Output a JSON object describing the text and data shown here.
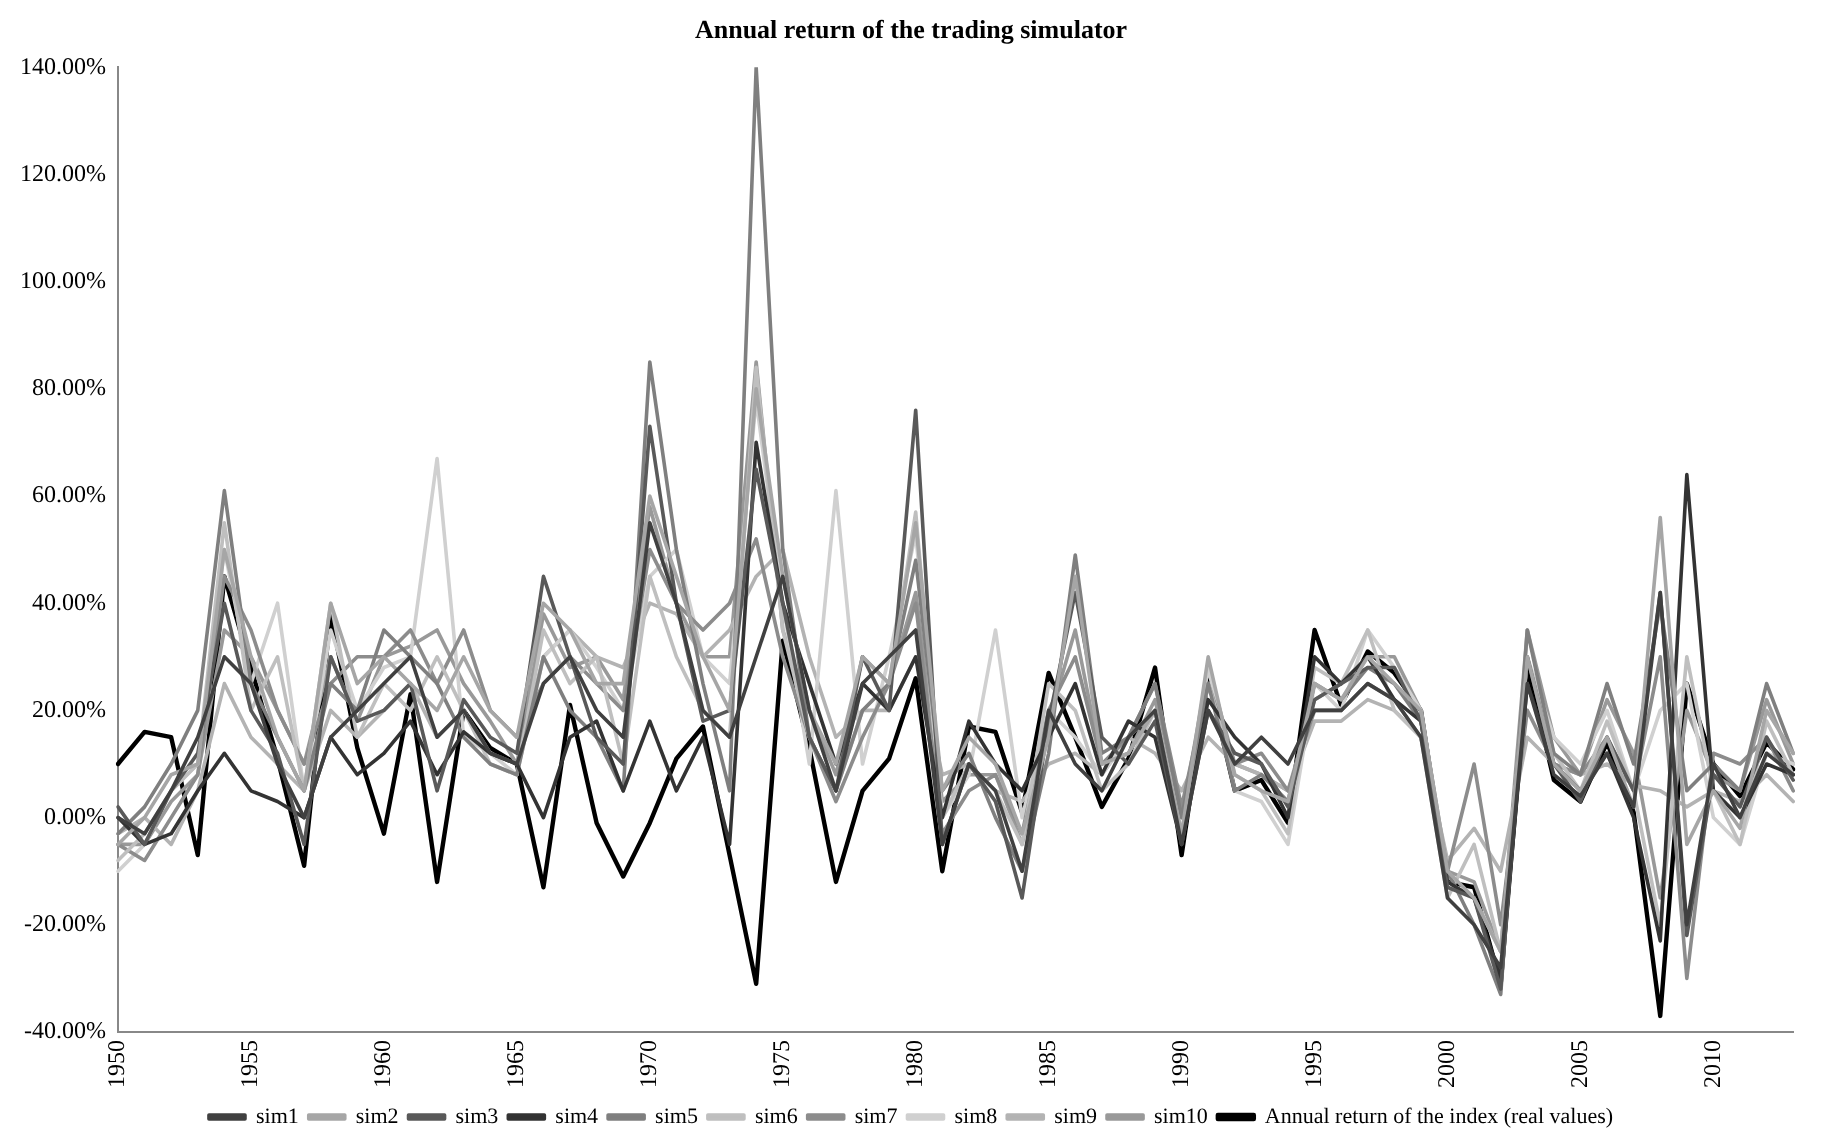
{
  "chart_data": {
    "type": "line",
    "title": "Annual return of the trading simulator",
    "categories": [
      "1950",
      null,
      null,
      null,
      null,
      "1955",
      null,
      null,
      null,
      null,
      "1960",
      null,
      null,
      null,
      null,
      "1965",
      null,
      null,
      null,
      null,
      "1970",
      null,
      null,
      null,
      null,
      "1975",
      null,
      null,
      null,
      null,
      "1980",
      null,
      null,
      null,
      null,
      "1985",
      null,
      null,
      null,
      null,
      "1990",
      null,
      null,
      null,
      null,
      "1995",
      null,
      null,
      null,
      null,
      "2000",
      null,
      null,
      null,
      null,
      "2005",
      null,
      null,
      null,
      null,
      "2010",
      null,
      null,
      null
    ],
    "ylim": [
      -40,
      140
    ],
    "yticks": [
      {
        "value": -40,
        "label": "-40.00%"
      },
      {
        "value": -20,
        "label": "-20.00%"
      },
      {
        "value": 0,
        "label": "0.00%"
      },
      {
        "value": 20,
        "label": "20.00%"
      },
      {
        "value": 40,
        "label": "40.00%"
      },
      {
        "value": 60,
        "label": "60.00%"
      },
      {
        "value": 80,
        "label": "80.00%"
      },
      {
        "value": 100,
        "label": "100.00%"
      },
      {
        "value": 120,
        "label": "120.00%"
      },
      {
        "value": 140,
        "label": "140.00%"
      }
    ],
    "grid": false,
    "legend": "bottom",
    "marker": "none",
    "line_style": "solid",
    "series": [
      {
        "name": "sim1",
        "color": "#404040",
        "values": [
          0,
          -3,
          5,
          15,
          30,
          25,
          10,
          0,
          15,
          20,
          25,
          30,
          15,
          20,
          12,
          10,
          25,
          30,
          20,
          15,
          55,
          40,
          20,
          15,
          30,
          45,
          20,
          5,
          25,
          30,
          35,
          -5,
          10,
          5,
          -10,
          20,
          10,
          5,
          15,
          20,
          -5,
          20,
          10,
          15,
          10,
          20,
          20,
          25,
          22,
          15,
          -15,
          -20,
          -28,
          25,
          8,
          4,
          12,
          2,
          42,
          -20,
          10,
          0,
          12,
          8
        ]
      },
      {
        "name": "sim2",
        "color": "#a6a6a6",
        "values": [
          -5,
          0,
          8,
          10,
          50,
          30,
          15,
          5,
          40,
          25,
          30,
          25,
          20,
          30,
          20,
          15,
          40,
          35,
          25,
          25,
          60,
          45,
          30,
          20,
          80,
          45,
          20,
          10,
          30,
          25,
          55,
          5,
          15,
          10,
          -3,
          15,
          45,
          10,
          12,
          20,
          -3,
          30,
          8,
          5,
          3,
          25,
          22,
          30,
          25,
          20,
          -10,
          -15,
          -25,
          30,
          10,
          5,
          15,
          2,
          56,
          -5,
          5,
          -2,
          20,
          12
        ]
      },
      {
        "name": "sim3",
        "color": "#595959",
        "values": [
          2,
          -5,
          5,
          12,
          40,
          20,
          12,
          -5,
          30,
          18,
          20,
          25,
          5,
          22,
          15,
          12,
          45,
          30,
          15,
          10,
          73,
          40,
          18,
          20,
          65,
          40,
          15,
          5,
          30,
          20,
          76,
          -5,
          10,
          3,
          -15,
          18,
          42,
          15,
          10,
          18,
          -5,
          20,
          12,
          10,
          2,
          22,
          25,
          28,
          28,
          18,
          -13,
          -15,
          -32,
          30,
          10,
          3,
          15,
          5,
          42,
          -22,
          8,
          2,
          15,
          7
        ]
      },
      {
        "name": "sim4",
        "color": "#333333",
        "values": [
          0,
          -5,
          -3,
          5,
          12,
          5,
          3,
          0,
          15,
          8,
          12,
          18,
          8,
          16,
          12,
          10,
          0,
          15,
          18,
          5,
          18,
          5,
          15,
          -5,
          70,
          40,
          25,
          10,
          25,
          20,
          30,
          0,
          18,
          10,
          5,
          15,
          25,
          8,
          18,
          15,
          -5,
          22,
          15,
          10,
          0,
          30,
          25,
          30,
          22,
          18,
          -12,
          -15,
          -30,
          25,
          10,
          5,
          12,
          0,
          -23,
          64,
          5,
          0,
          10,
          8
        ]
      },
      {
        "name": "sim5",
        "color": "#7f7f7f",
        "values": [
          -3,
          2,
          10,
          20,
          61,
          25,
          15,
          5,
          25,
          20,
          35,
          30,
          25,
          15,
          10,
          8,
          30,
          20,
          15,
          5,
          85,
          50,
          25,
          5,
          140,
          50,
          15,
          5,
          20,
          25,
          48,
          5,
          12,
          0,
          -10,
          12,
          49,
          12,
          15,
          25,
          0,
          25,
          5,
          8,
          3,
          25,
          22,
          28,
          25,
          18,
          -10,
          -20,
          -33,
          35,
          12,
          8,
          25,
          10,
          40,
          5,
          10,
          5,
          25,
          12
        ]
      },
      {
        "name": "sim6",
        "color": "#bfbfbf",
        "values": [
          -8,
          -3,
          5,
          10,
          55,
          20,
          30,
          5,
          40,
          15,
          25,
          20,
          30,
          20,
          10,
          8,
          35,
          25,
          30,
          10,
          45,
          30,
          20,
          15,
          84,
          35,
          15,
          5,
          20,
          25,
          57,
          0,
          10,
          5,
          -5,
          25,
          20,
          5,
          10,
          20,
          -3,
          25,
          8,
          5,
          -3,
          28,
          25,
          35,
          20,
          15,
          -15,
          -5,
          -25,
          30,
          12,
          5,
          18,
          5,
          -20,
          30,
          5,
          -5,
          18,
          8
        ]
      },
      {
        "name": "sim7",
        "color": "#8c8c8c",
        "values": [
          -5,
          -8,
          0,
          8,
          45,
          35,
          20,
          10,
          25,
          30,
          30,
          35,
          25,
          35,
          20,
          15,
          25,
          30,
          25,
          20,
          50,
          40,
          35,
          40,
          52,
          30,
          15,
          3,
          15,
          25,
          40,
          -3,
          5,
          8,
          -3,
          20,
          30,
          10,
          15,
          25,
          2,
          25,
          10,
          12,
          5,
          20,
          20,
          25,
          22,
          15,
          -10,
          10,
          -20,
          20,
          10,
          8,
          15,
          5,
          30,
          -30,
          12,
          10,
          15,
          5
        ]
      },
      {
        "name": "sim8",
        "color": "#d0d0d0",
        "values": [
          -10,
          -5,
          5,
          10,
          50,
          25,
          40,
          5,
          35,
          20,
          28,
          30,
          67,
          15,
          12,
          8,
          30,
          35,
          28,
          20,
          45,
          50,
          30,
          25,
          78,
          40,
          10,
          61,
          10,
          30,
          53,
          0,
          8,
          35,
          0,
          20,
          15,
          8,
          15,
          20,
          -3,
          28,
          5,
          3,
          -5,
          25,
          20,
          35,
          28,
          20,
          -12,
          -15,
          -25,
          30,
          15,
          10,
          20,
          5,
          20,
          25,
          0,
          -5,
          12,
          10
        ]
      },
      {
        "name": "sim9",
        "color": "#b3b3b3",
        "values": [
          -3,
          0,
          -5,
          5,
          25,
          15,
          10,
          5,
          20,
          15,
          20,
          25,
          15,
          20,
          12,
          10,
          30,
          35,
          30,
          28,
          40,
          38,
          30,
          35,
          45,
          50,
          30,
          15,
          20,
          20,
          30,
          8,
          10,
          5,
          3,
          10,
          12,
          8,
          15,
          12,
          5,
          15,
          10,
          8,
          5,
          18,
          18,
          22,
          20,
          15,
          -8,
          -2,
          -10,
          15,
          10,
          8,
          10,
          6,
          5,
          2,
          5,
          3,
          8,
          3
        ]
      },
      {
        "name": "sim10",
        "color": "#999999",
        "values": [
          -5,
          -5,
          3,
          8,
          35,
          30,
          20,
          10,
          30,
          18,
          30,
          32,
          35,
          25,
          18,
          10,
          38,
          28,
          30,
          22,
          58,
          40,
          30,
          30,
          85,
          35,
          20,
          8,
          30,
          25,
          42,
          3,
          8,
          8,
          -5,
          18,
          35,
          10,
          12,
          22,
          0,
          28,
          10,
          8,
          5,
          22,
          25,
          30,
          30,
          20,
          -10,
          -12,
          -25,
          35,
          15,
          8,
          22,
          12,
          -15,
          20,
          8,
          5,
          22,
          10
        ]
      },
      {
        "name": "Annual return of the index (real values)",
        "color": "#000000",
        "values": [
          10,
          16,
          15,
          -7,
          45,
          28,
          11,
          -9,
          38,
          13,
          -3,
          23,
          -12,
          20,
          13,
          10,
          -13,
          21,
          -1,
          -11,
          -1,
          11,
          17,
          -7,
          -31,
          33,
          13,
          -12,
          5,
          11,
          26,
          -10,
          17,
          16,
          1,
          27,
          15,
          2,
          11,
          28,
          -7,
          26,
          5,
          7,
          -1,
          35,
          21,
          31,
          27,
          20,
          -12,
          -13,
          -31,
          28,
          7,
          3,
          14,
          1,
          -37,
          25,
          10,
          4,
          14,
          9
        ]
      }
    ]
  }
}
